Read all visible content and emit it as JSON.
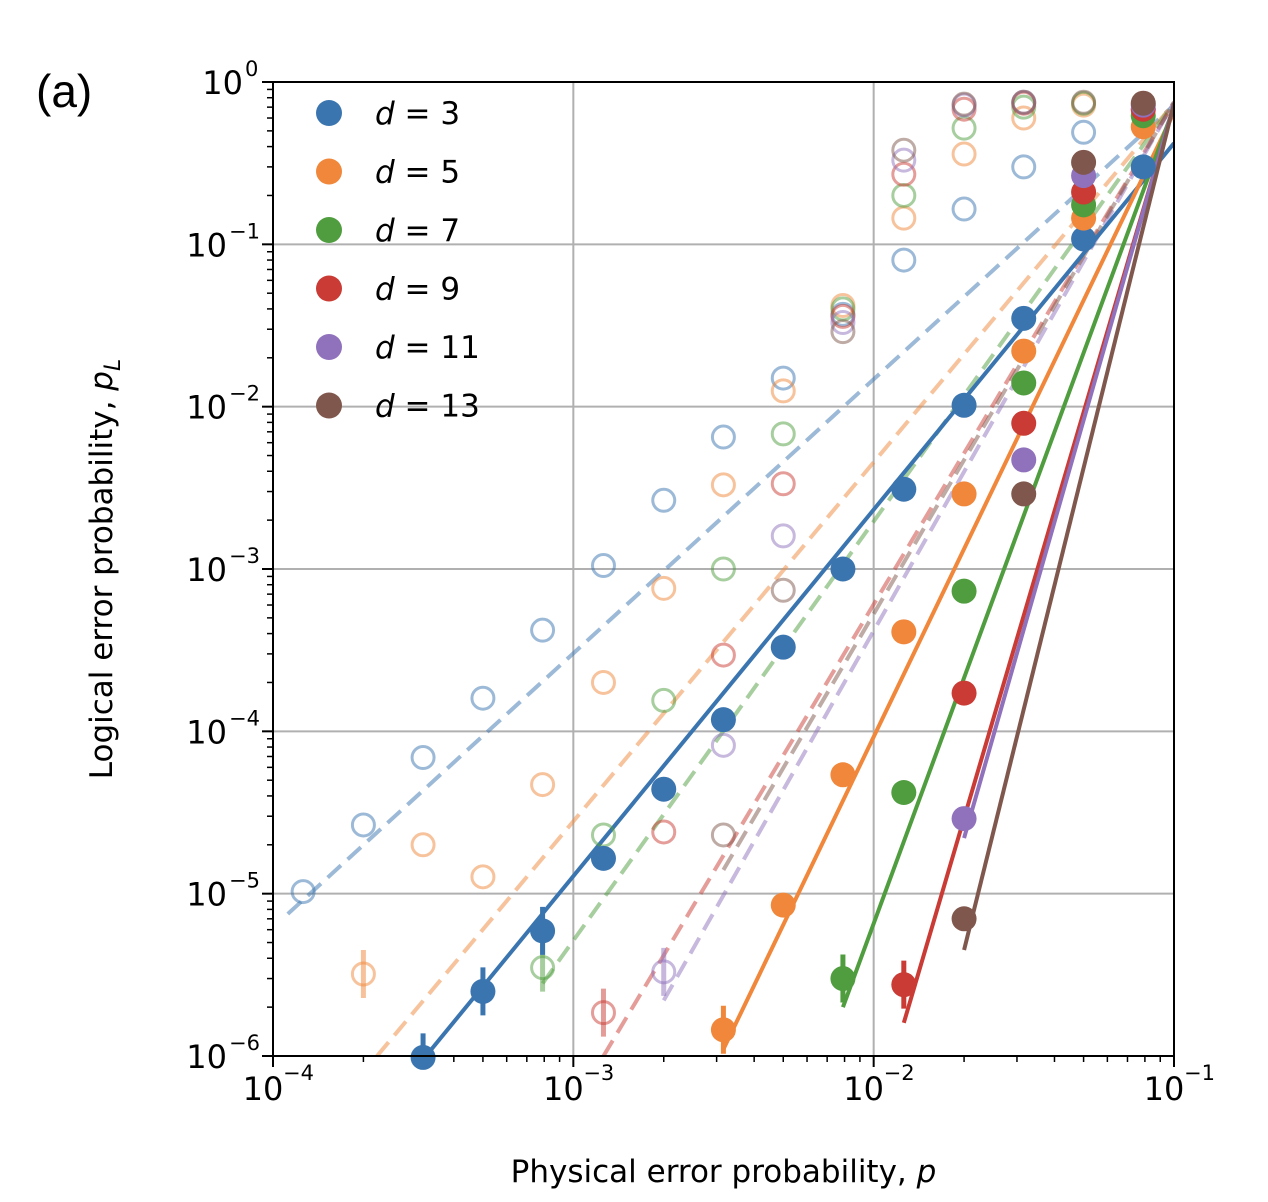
{
  "panel_label": "(a)",
  "chart_data": {
    "type": "line",
    "title": "",
    "xlabel": "Physical error probability, p",
    "ylabel": "Logical error probability, p_L",
    "xscale": "log",
    "yscale": "log",
    "xlim": [
      0.0001,
      0.1
    ],
    "ylim": [
      1e-06,
      1
    ],
    "grid": "major",
    "legend_position": "top-left",
    "x_ticks": [
      {
        "base": "10",
        "exp": "−4",
        "value": 0.0001
      },
      {
        "base": "10",
        "exp": "−3",
        "value": 0.001
      },
      {
        "base": "10",
        "exp": "−2",
        "value": 0.01
      },
      {
        "base": "10",
        "exp": "−1",
        "value": 0.1
      }
    ],
    "y_ticks": [
      {
        "base": "10",
        "exp": "−6",
        "value": 1e-06
      },
      {
        "base": "10",
        "exp": "−5",
        "value": 1e-05
      },
      {
        "base": "10",
        "exp": "−4",
        "value": 0.0001
      },
      {
        "base": "10",
        "exp": "−3",
        "value": 0.001
      },
      {
        "base": "10",
        "exp": "−2",
        "value": 0.01
      },
      {
        "base": "10",
        "exp": "−1",
        "value": 0.1
      },
      {
        "base": "10",
        "exp": "0",
        "value": 1
      }
    ],
    "legend": [
      {
        "d": "3",
        "color": "#3a75b0"
      },
      {
        "d": "5",
        "color": "#f0873a"
      },
      {
        "d": "7",
        "color": "#4f9d3e"
      },
      {
        "d": "9",
        "color": "#c93b34"
      },
      {
        "d": "11",
        "color": "#9071bc"
      },
      {
        "d": "13",
        "color": "#80574c"
      }
    ],
    "series": [
      {
        "name": "d = 3",
        "color": "#3a75b0",
        "style": "solid",
        "marker": "filled",
        "points": [
          [
            0.000316,
            9.8e-07
          ],
          [
            0.0005,
            2.5e-06
          ],
          [
            0.00079,
            5.9e-06
          ],
          [
            0.00126,
            1.65e-05
          ],
          [
            0.002,
            4.4e-05
          ],
          [
            0.00316,
            0.000118
          ],
          [
            0.005,
            0.00033
          ],
          [
            0.0079,
            0.001
          ],
          [
            0.0126,
            0.0031
          ],
          [
            0.02,
            0.0102
          ],
          [
            0.0316,
            0.035
          ],
          [
            0.05,
            0.108
          ],
          [
            0.079,
            0.3
          ]
        ],
        "fit": [
          [
            0.000323,
            1e-06
          ],
          [
            0.1,
            0.42
          ]
        ]
      },
      {
        "name": "d = 5",
        "color": "#f0873a",
        "style": "solid",
        "marker": "filled",
        "points": [
          [
            0.00316,
            1.45e-06
          ],
          [
            0.005,
            8.5e-06
          ],
          [
            0.0079,
            5.4e-05
          ],
          [
            0.0126,
            0.00041
          ],
          [
            0.02,
            0.0029
          ],
          [
            0.0316,
            0.022
          ],
          [
            0.05,
            0.145
          ],
          [
            0.079,
            0.53
          ]
        ],
        "fit": [
          [
            0.00316,
            1.1e-06
          ],
          [
            0.1,
            0.65
          ]
        ]
      },
      {
        "name": "d = 7",
        "color": "#4f9d3e",
        "style": "solid",
        "marker": "filled",
        "points": [
          [
            0.0079,
            3e-06
          ],
          [
            0.0126,
            4.2e-05
          ],
          [
            0.02,
            0.00073
          ],
          [
            0.0316,
            0.014
          ],
          [
            0.05,
            0.175
          ],
          [
            0.079,
            0.62
          ]
        ],
        "fit": [
          [
            0.0079,
            2e-06
          ],
          [
            0.1,
            0.7
          ]
        ]
      },
      {
        "name": "d = 9",
        "color": "#c93b34",
        "style": "solid",
        "marker": "filled",
        "points": [
          [
            0.0126,
            2.75e-06
          ],
          [
            0.02,
            0.000172
          ],
          [
            0.0316,
            0.0079
          ],
          [
            0.05,
            0.21
          ],
          [
            0.079,
            0.68
          ]
        ],
        "fit": [
          [
            0.0126,
            1.6e-06
          ],
          [
            0.1,
            0.72
          ]
        ]
      },
      {
        "name": "d = 11",
        "color": "#9071bc",
        "style": "solid",
        "marker": "filled",
        "points": [
          [
            0.02,
            2.9e-05
          ],
          [
            0.0316,
            0.0047
          ],
          [
            0.05,
            0.265
          ],
          [
            0.079,
            0.72
          ]
        ],
        "fit": [
          [
            0.02,
            2.2e-05
          ],
          [
            0.1,
            0.73
          ]
        ]
      },
      {
        "name": "d = 13",
        "color": "#80574c",
        "style": "solid",
        "marker": "filled",
        "points": [
          [
            0.02,
            7e-06
          ],
          [
            0.0316,
            0.0029
          ],
          [
            0.05,
            0.32
          ],
          [
            0.079,
            0.74
          ]
        ],
        "fit": [
          [
            0.02,
            4.5e-06
          ],
          [
            0.1,
            0.74
          ]
        ]
      },
      {
        "name": "d = 3",
        "color": "#3a75b0",
        "style": "dashed",
        "marker": "open",
        "points": [
          [
            0.000126,
            1.03e-05
          ],
          [
            0.0002,
            2.65e-05
          ],
          [
            0.000316,
            6.9e-05
          ],
          [
            0.0005,
            0.00016
          ],
          [
            0.00079,
            0.00042
          ],
          [
            0.00126,
            0.00105
          ],
          [
            0.002,
            0.00265
          ],
          [
            0.00316,
            0.0065
          ],
          [
            0.005,
            0.015
          ],
          [
            0.0079,
            0.037
          ],
          [
            0.0126,
            0.08
          ],
          [
            0.02,
            0.165
          ],
          [
            0.0316,
            0.3
          ],
          [
            0.05,
            0.49
          ],
          [
            0.079,
            0.68
          ]
        ],
        "fit": [
          [
            0.000112,
            7.5e-06
          ],
          [
            0.1,
            0.72
          ]
        ]
      },
      {
        "name": "d = 5",
        "color": "#f0873a",
        "style": "dashed",
        "marker": "open",
        "points": [
          [
            0.0002,
            3.2e-06
          ],
          [
            0.000316,
            2e-05
          ],
          [
            0.0005,
            1.27e-05
          ],
          [
            0.00079,
            4.7e-05
          ],
          [
            0.00126,
            0.0002
          ],
          [
            0.002,
            0.00076
          ],
          [
            0.00316,
            0.0033
          ],
          [
            0.005,
            0.0125
          ],
          [
            0.0079,
            0.042
          ],
          [
            0.0126,
            0.145
          ],
          [
            0.02,
            0.36
          ],
          [
            0.0316,
            0.6
          ],
          [
            0.05,
            0.72
          ]
        ],
        "fit": [
          [
            0.000222,
            1e-06
          ],
          [
            0.1,
            0.74
          ]
        ]
      },
      {
        "name": "d = 7",
        "color": "#4f9d3e",
        "style": "dashed",
        "marker": "open",
        "points": [
          [
            0.00079,
            3.5e-06
          ],
          [
            0.00126,
            2.3e-05
          ],
          [
            0.002,
            0.000155
          ],
          [
            0.00316,
            0.001
          ],
          [
            0.005,
            0.0068
          ],
          [
            0.0079,
            0.04
          ],
          [
            0.0126,
            0.2
          ],
          [
            0.02,
            0.52
          ],
          [
            0.0316,
            0.7
          ],
          [
            0.05,
            0.74
          ]
        ],
        "fit": [
          [
            0.00079,
            2.8e-06
          ],
          [
            0.1,
            0.75
          ]
        ]
      },
      {
        "name": "d = 9",
        "color": "#c93b34",
        "style": "dashed",
        "marker": "open",
        "points": [
          [
            0.00126,
            1.85e-06
          ],
          [
            0.002,
            2.4e-05
          ],
          [
            0.00316,
            0.000295
          ],
          [
            0.005,
            0.00335
          ],
          [
            0.0079,
            0.036
          ],
          [
            0.0126,
            0.27
          ],
          [
            0.02,
            0.68
          ],
          [
            0.0316,
            0.74
          ]
        ],
        "fit": [
          [
            0.00126,
            1e-06
          ],
          [
            0.1,
            0.75
          ]
        ]
      },
      {
        "name": "d = 11",
        "color": "#9071bc",
        "style": "dashed",
        "marker": "open",
        "points": [
          [
            0.002,
            3.3e-06
          ],
          [
            0.00316,
            8.2e-05
          ],
          [
            0.005,
            0.0016
          ],
          [
            0.0079,
            0.033
          ],
          [
            0.0126,
            0.33
          ],
          [
            0.02,
            0.72
          ],
          [
            0.0316,
            0.75
          ]
        ],
        "fit": [
          [
            0.002,
            2.2e-06
          ],
          [
            0.1,
            0.75
          ]
        ]
      },
      {
        "name": "d = 13",
        "color": "#80574c",
        "style": "dashed",
        "marker": "open",
        "points": [
          [
            0.00316,
            2.3e-05
          ],
          [
            0.005,
            0.00074
          ],
          [
            0.0079,
            0.029
          ],
          [
            0.0126,
            0.38
          ],
          [
            0.02,
            0.73
          ],
          [
            0.0316,
            0.75
          ],
          [
            0.05,
            0.75
          ]
        ],
        "fit": [
          [
            0.00316,
            1.4e-05
          ],
          [
            0.1,
            0.75
          ]
        ]
      }
    ]
  }
}
